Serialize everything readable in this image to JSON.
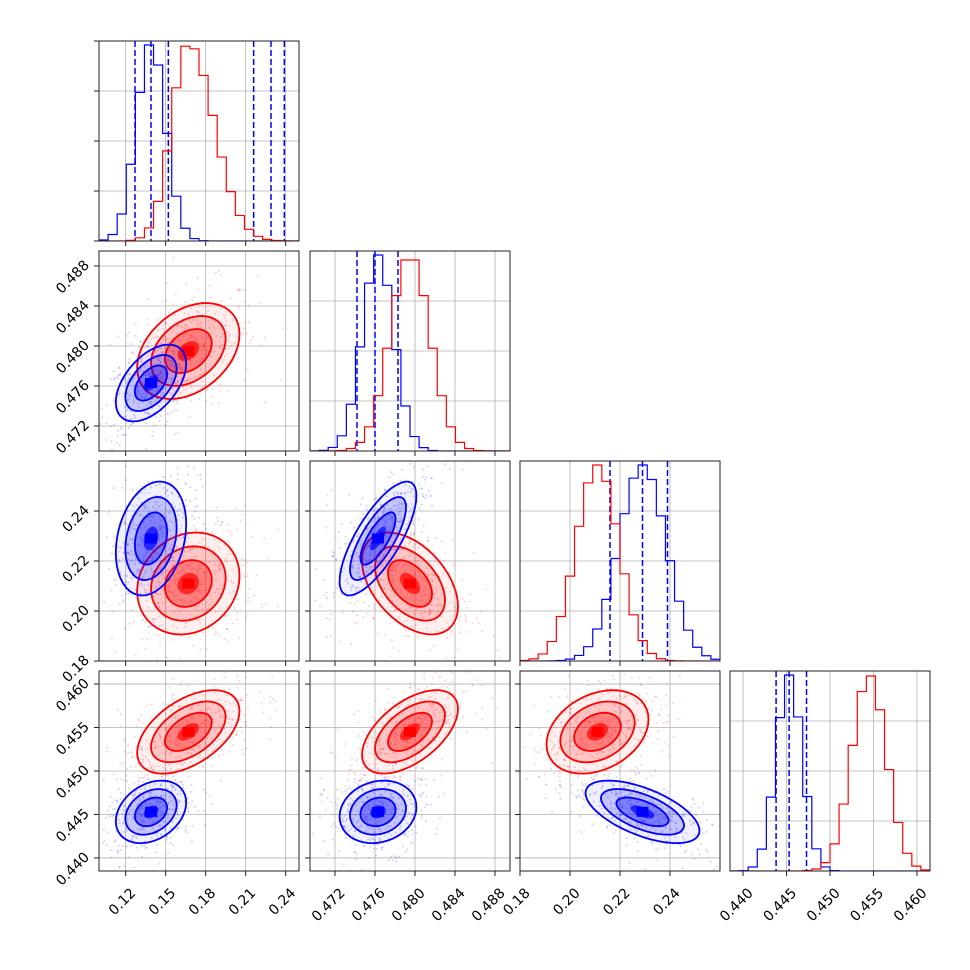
{
  "chart_data": {
    "type": "corner",
    "title": "",
    "grid": true,
    "parameters": [
      {
        "range": [
          0.1,
          0.25
        ],
        "ticks": [
          0.12,
          0.15,
          0.18,
          0.21,
          0.24
        ],
        "tick_labels": [
          "0.12",
          "0.15",
          "0.18",
          "0.21",
          "0.24"
        ]
      },
      {
        "range": [
          0.4695,
          0.4895
        ],
        "ticks": [
          0.472,
          0.476,
          0.48,
          0.484,
          0.488
        ],
        "tick_labels": [
          "0.472",
          "0.476",
          "0.480",
          "0.484",
          "0.488"
        ]
      },
      {
        "range": [
          0.18,
          0.26
        ],
        "ticks": [
          0.18,
          0.2,
          0.22,
          0.24
        ],
        "tick_labels": [
          "0.18",
          "0.20",
          "0.22",
          "0.24"
        ]
      },
      {
        "range": [
          0.4385,
          0.4615
        ],
        "ticks": [
          0.44,
          0.445,
          0.45,
          0.455,
          0.46
        ],
        "tick_labels": [
          "0.440",
          "0.445",
          "0.450",
          "0.455",
          "0.460"
        ]
      }
    ],
    "series": [
      {
        "color": "#0000ff",
        "mean": [
          0.139,
          0.4763,
          0.229,
          0.4453
        ],
        "sigma": [
          0.011,
          0.0016,
          0.0095,
          0.0015
        ],
        "quantile_lines": [
          [
            0.127,
            0.139,
            0.152
          ],
          [
            0.4742,
            0.476,
            0.4783
          ],
          [
            0.216,
            0.229,
            0.239
          ],
          [
            0.4438,
            0.4453,
            0.4473
          ]
        ]
      },
      {
        "color": "#ff0000",
        "mean": [
          0.167,
          0.4795,
          0.211,
          0.4545
        ],
        "sigma": [
          0.016,
          0.002,
          0.0085,
          0.002
        ],
        "quantile_lines": []
      }
    ],
    "correlations": [
      {
        "pair": [
          0,
          1
        ],
        "blue": 0.5,
        "red": 0.35
      },
      {
        "pair": [
          0,
          2
        ],
        "blue": 0.25,
        "red": 0.15
      },
      {
        "pair": [
          1,
          2
        ],
        "blue": 0.75,
        "red": -0.45
      },
      {
        "pair": [
          0,
          3
        ],
        "blue": 0.3,
        "red": 0.5
      },
      {
        "pair": [
          1,
          3
        ],
        "blue": 0.15,
        "red": 0.55
      },
      {
        "pair": [
          2,
          3
        ],
        "blue": -0.6,
        "red": 0.3
      }
    ]
  }
}
